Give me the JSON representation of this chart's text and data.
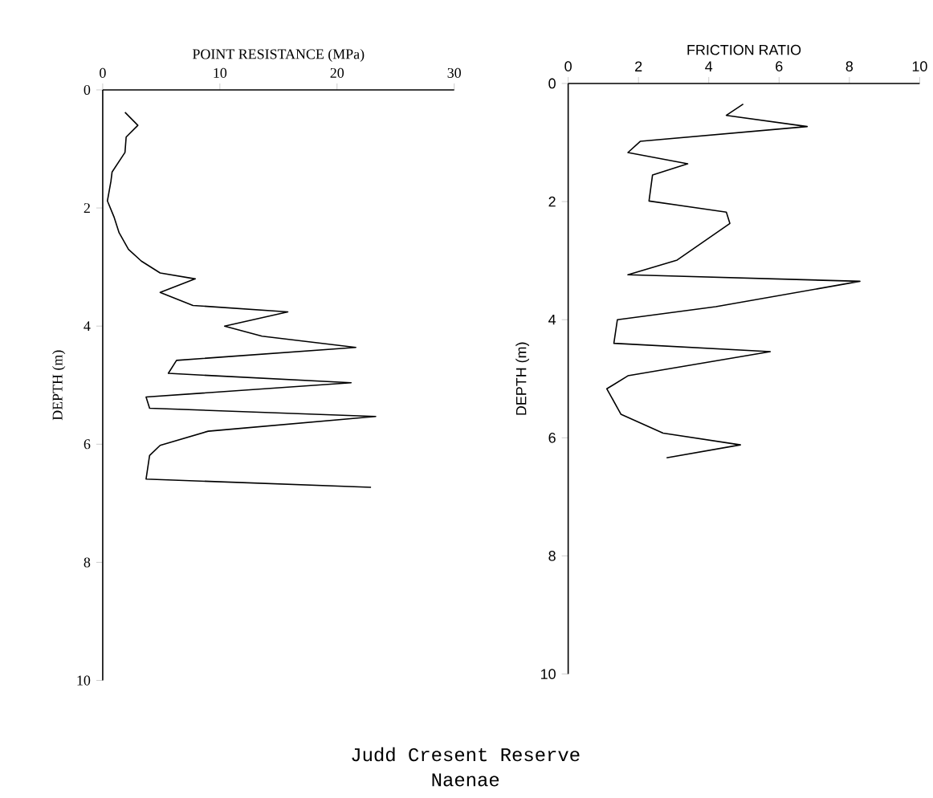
{
  "chart_data": [
    {
      "type": "line",
      "xlabel": "POINT RESISTANCE (MPa)",
      "ylabel": "DEPTH (m)",
      "xlim": [
        0,
        30
      ],
      "xticks": [
        0,
        10,
        20,
        30
      ],
      "ylim": [
        10,
        0
      ],
      "yticks": [
        0,
        2,
        4,
        6,
        8,
        10
      ],
      "color": "#000000",
      "x": [
        1.9,
        3.0,
        2.0,
        1.9,
        0.8,
        0.7,
        0.4,
        0.96,
        1.4,
        2.2,
        3.3,
        4.9,
        7.9,
        4.9,
        7.7,
        15.8,
        10.4,
        13.6,
        21.6,
        6.3,
        5.6,
        21.2,
        3.7,
        4.0,
        23.3,
        9.0,
        4.9,
        4.0,
        3.7,
        22.9
      ],
      "values": [
        0.38,
        0.6,
        0.8,
        1.06,
        1.39,
        1.55,
        1.88,
        2.15,
        2.42,
        2.7,
        2.9,
        3.1,
        3.2,
        3.43,
        3.65,
        3.76,
        4.0,
        4.17,
        4.36,
        4.58,
        4.8,
        4.96,
        5.2,
        5.39,
        5.53,
        5.78,
        6.02,
        6.19,
        6.59,
        6.73
      ],
      "annotations": [
        "Judd Cresent Reserve",
        "Naenae"
      ]
    },
    {
      "type": "line",
      "xlabel": "FRICTION RATIO",
      "ylabel": "DEPTH (m)",
      "xlim": [
        0,
        10
      ],
      "xticks": [
        0,
        2,
        4,
        6,
        8,
        10
      ],
      "ylim": [
        10,
        0
      ],
      "yticks": [
        0,
        2,
        4,
        6,
        8,
        10
      ],
      "color": "#000000",
      "x": [
        4.98,
        4.5,
        6.8,
        2.05,
        1.7,
        3.4,
        2.4,
        2.3,
        4.5,
        4.6,
        3.1,
        1.7,
        8.3,
        4.2,
        1.4,
        1.3,
        5.75,
        1.7,
        1.1,
        1.5,
        2.7,
        4.9,
        2.8
      ],
      "values": [
        0.35,
        0.54,
        0.73,
        0.98,
        1.17,
        1.36,
        1.55,
        1.99,
        2.18,
        2.37,
        2.99,
        3.24,
        3.35,
        3.78,
        4.0,
        4.4,
        4.54,
        4.95,
        5.17,
        5.6,
        5.92,
        6.12,
        6.34
      ]
    }
  ]
}
